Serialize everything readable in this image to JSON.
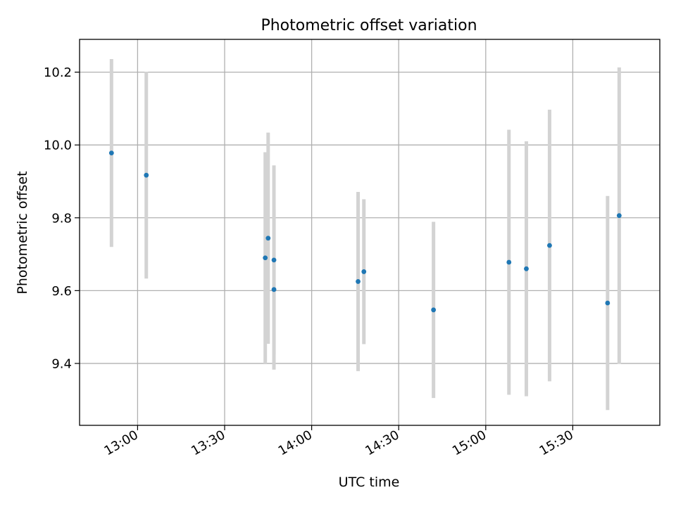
{
  "chart_data": {
    "type": "scatter",
    "title": "Photometric offset variation",
    "xlabel": "UTC time",
    "ylabel": "Photometric offset",
    "x_tick_labels": [
      "13:00",
      "13:30",
      "14:00",
      "14:30",
      "15:00",
      "15:30"
    ],
    "y_tick_labels": [
      "9.4",
      "9.6",
      "9.8",
      "10.0",
      "10.2"
    ],
    "grid": true,
    "series": [
      {
        "marker_color": "#1f77b4",
        "errorbar_color": "#d3d3d3",
        "points": [
          {
            "x": "12:51",
            "y": 9.978,
            "err": 0.258
          },
          {
            "x": "13:03",
            "y": 9.917,
            "err": 0.284
          },
          {
            "x": "13:44",
            "y": 9.69,
            "err": 0.29
          },
          {
            "x": "13:45",
            "y": 9.744,
            "err": 0.29
          },
          {
            "x": "13:47",
            "y": 9.684,
            "err": 0.26
          },
          {
            "x": "13:47",
            "y": 9.603,
            "err": 0.22
          },
          {
            "x": "14:16",
            "y": 9.625,
            "err": 0.246
          },
          {
            "x": "14:18",
            "y": 9.652,
            "err": 0.199
          },
          {
            "x": "14:42",
            "y": 9.547,
            "err": 0.242
          },
          {
            "x": "15:08",
            "y": 9.678,
            "err": 0.364
          },
          {
            "x": "15:14",
            "y": 9.66,
            "err": 0.35
          },
          {
            "x": "15:22",
            "y": 9.724,
            "err": 0.373
          },
          {
            "x": "15:42",
            "y": 9.566,
            "err": 0.294
          },
          {
            "x": "15:46",
            "y": 9.806,
            "err": 0.407
          }
        ]
      }
    ]
  }
}
